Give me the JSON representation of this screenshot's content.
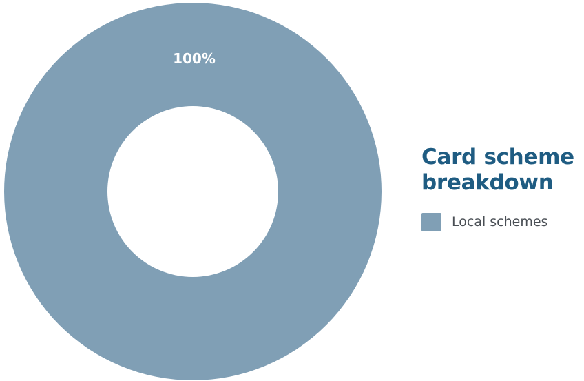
{
  "chart_data": {
    "type": "pie",
    "title": "Card scheme breakdown",
    "categories": [
      "Local schemes"
    ],
    "values": [
      100
    ],
    "data_labels": [
      "100%"
    ],
    "colors": [
      "#809fb5"
    ],
    "hole": "donut",
    "legend": "right"
  },
  "legend": {
    "title_line1": "Card scheme",
    "title_line2": "breakdown",
    "items": [
      {
        "label": "Local schemes",
        "color": "#809fb5"
      }
    ]
  },
  "colors": {
    "title": "#1f5c82",
    "legend_text": "#4a4f55",
    "slice_label": "#ffffff",
    "background": "#ffffff"
  }
}
